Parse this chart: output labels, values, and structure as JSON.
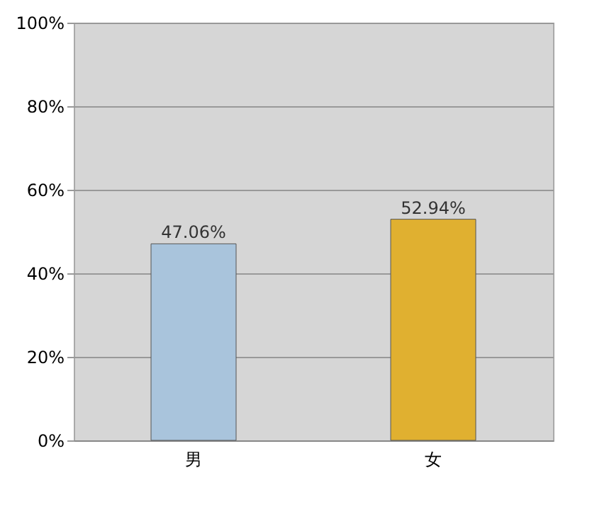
{
  "chart_data": {
    "type": "bar",
    "categories": [
      "男",
      "女"
    ],
    "values": [
      47.06,
      52.94
    ],
    "colors": [
      "#a9c4dc",
      "#e0b030"
    ],
    "value_labels": [
      "47.06%",
      "52.94%"
    ],
    "ylim": [
      0,
      100
    ],
    "yticks": [
      {
        "value": 0,
        "label": "0%"
      },
      {
        "value": 20,
        "label": "20%"
      },
      {
        "value": 40,
        "label": "40%"
      },
      {
        "value": 60,
        "label": "60%"
      },
      {
        "value": 80,
        "label": "80%"
      },
      {
        "value": 100,
        "label": "100%"
      }
    ],
    "grid": "y"
  }
}
